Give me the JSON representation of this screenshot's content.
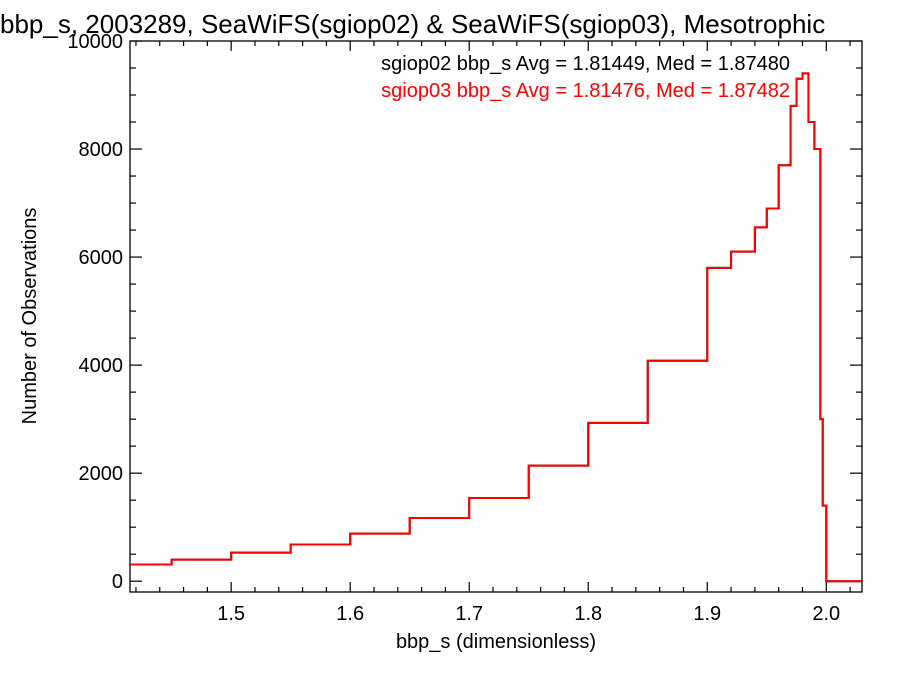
{
  "chart_data": {
    "type": "line",
    "title": "bbp_s, 2003289, SeaWiFS(sgiop02) & SeaWiFS(sgiop03), Mesotrophic",
    "xlabel": "bbp_s (dimensionless)",
    "ylabel": "Number of Observations",
    "xlim": [
      1.415,
      2.03
    ],
    "ylim": [
      -200,
      10000
    ],
    "x_ticks": [
      1.5,
      1.6,
      1.7,
      1.8,
      1.9,
      2.0
    ],
    "x_tick_labels": [
      "1.5",
      "1.6",
      "1.7",
      "1.8",
      "1.9",
      "2.0"
    ],
    "y_ticks": [
      0,
      2000,
      4000,
      6000,
      8000,
      10000
    ],
    "y_tick_labels": [
      "0",
      "2000",
      "4000",
      "6000",
      "8000",
      "10000"
    ],
    "grid": false,
    "legend_placement": "top-right",
    "annotations": [
      {
        "text": "sgiop02 bbp_s Avg = 1.81449, Med = 1.87480",
        "color": "#000000"
      },
      {
        "text": "sgiop03 bbp_s Avg = 1.81476, Med = 1.87482",
        "color": "#ff0000"
      }
    ],
    "series": [
      {
        "name": "sgiop02",
        "color": "#000000",
        "x": [
          1.415,
          1.45,
          1.5,
          1.55,
          1.6,
          1.65,
          1.7,
          1.75,
          1.8,
          1.85,
          1.9,
          1.92,
          1.94,
          1.95,
          1.96,
          1.97,
          1.975,
          1.98,
          1.985,
          1.99,
          1.995,
          1.997,
          2.0,
          2.03
        ],
        "values": [
          310,
          400,
          530,
          680,
          880,
          1170,
          1540,
          2140,
          2930,
          4080,
          5800,
          6100,
          6550,
          6900,
          7700,
          8800,
          9300,
          9400,
          8500,
          8000,
          3000,
          1400,
          0,
          0
        ]
      },
      {
        "name": "sgiop03",
        "color": "#ff0000",
        "x": [
          1.415,
          1.45,
          1.5,
          1.55,
          1.6,
          1.65,
          1.7,
          1.75,
          1.8,
          1.85,
          1.9,
          1.92,
          1.94,
          1.95,
          1.96,
          1.97,
          1.975,
          1.98,
          1.985,
          1.99,
          1.995,
          1.997,
          2.0,
          2.03
        ],
        "values": [
          310,
          400,
          530,
          680,
          880,
          1170,
          1540,
          2140,
          2930,
          4080,
          5800,
          6100,
          6550,
          6900,
          7700,
          8800,
          9300,
          9400,
          8500,
          8000,
          3000,
          1400,
          0,
          0
        ]
      }
    ]
  }
}
